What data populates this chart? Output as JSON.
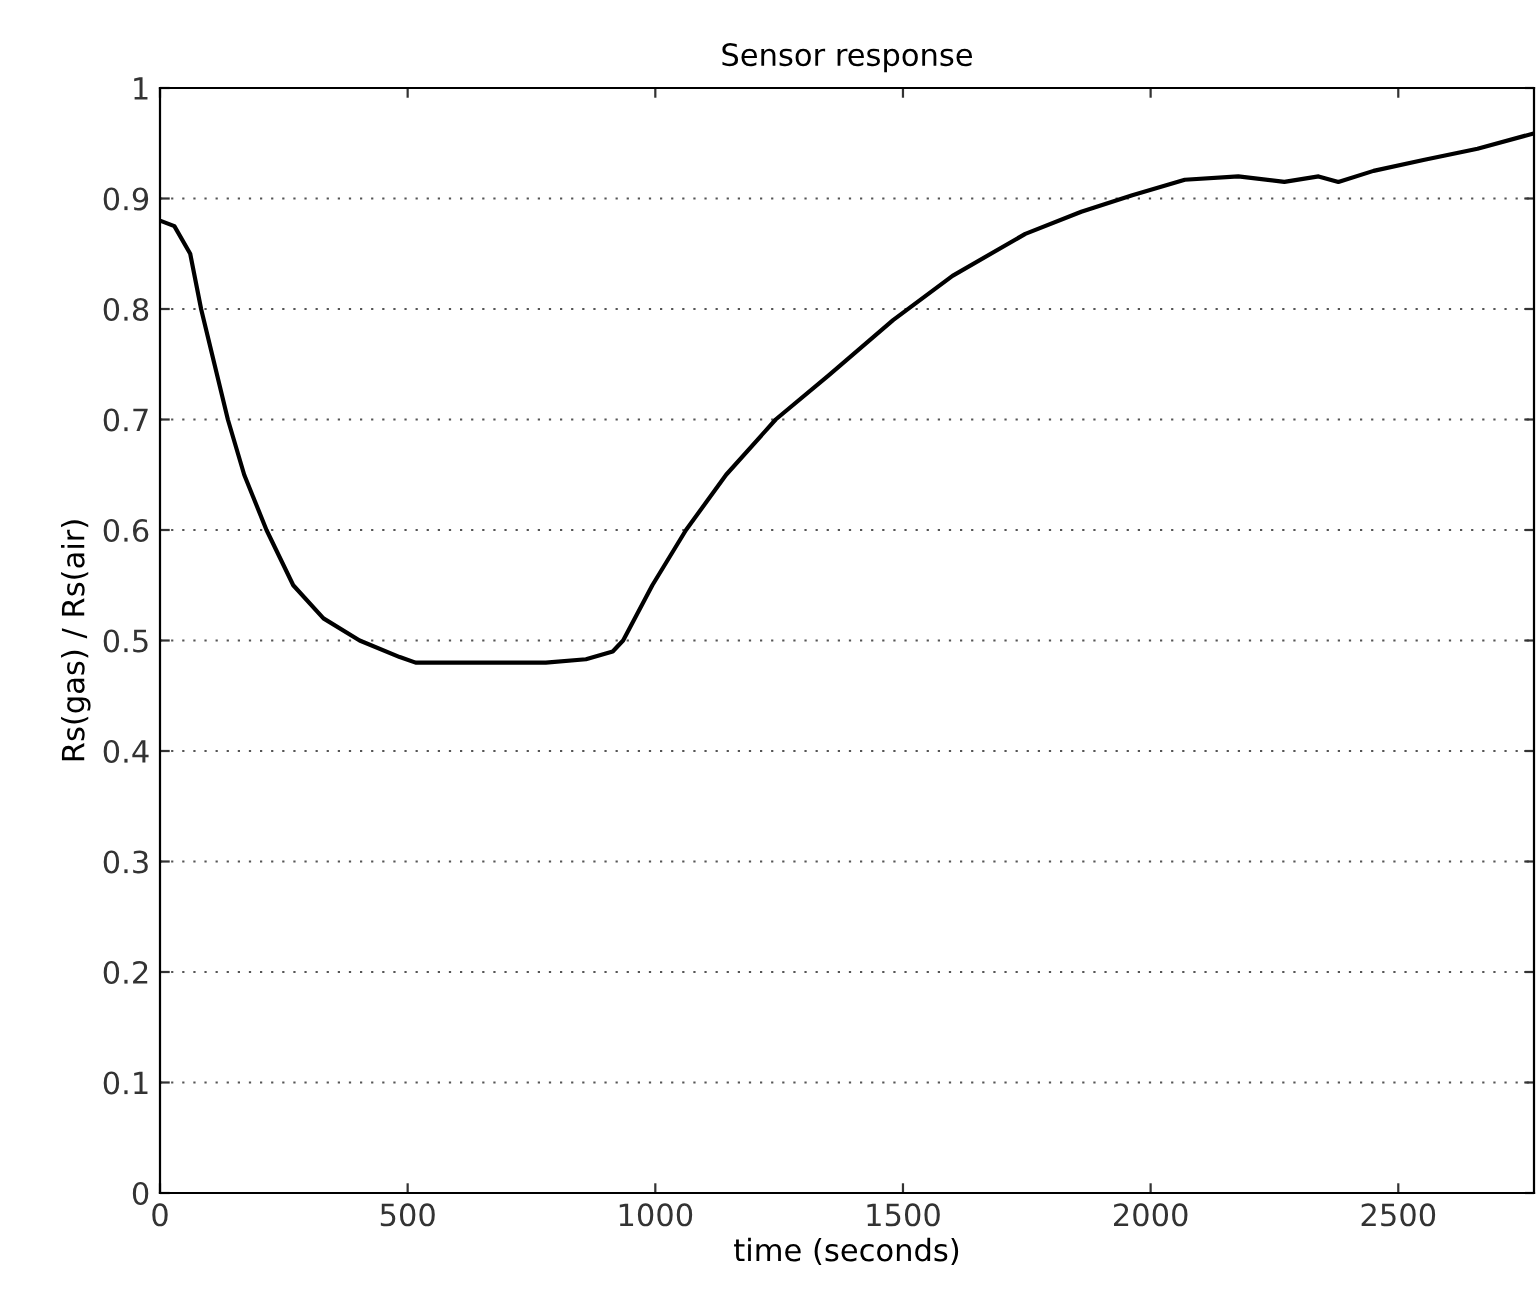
{
  "chart_data": {
    "type": "line",
    "title": "Sensor response",
    "xlabel": "time (seconds)",
    "ylabel": "Rs(gas) / Rs(air)",
    "x": [
      0,
      29,
      61,
      83,
      110,
      137,
      170,
      215,
      269,
      330,
      403,
      484,
      516,
      650,
      779,
      860,
      914,
      935,
      994,
      1062,
      1143,
      1243,
      1350,
      1480,
      1600,
      1747,
      1860,
      1963,
      2069,
      2177,
      2270,
      2339,
      2379,
      2450,
      2553,
      2660,
      2774
    ],
    "series": [
      {
        "color": "#000000",
        "values": [
          0.88,
          0.875,
          0.85,
          0.8,
          0.75,
          0.7,
          0.65,
          0.6,
          0.55,
          0.52,
          0.5,
          0.485,
          0.48,
          0.48,
          0.48,
          0.483,
          0.49,
          0.5,
          0.55,
          0.6,
          0.65,
          0.7,
          0.74,
          0.79,
          0.83,
          0.868,
          0.888,
          0.903,
          0.917,
          0.92,
          0.915,
          0.92,
          0.915,
          0.925,
          0.935,
          0.945,
          0.959
        ]
      }
    ],
    "xlim": [
      0,
      2774
    ],
    "xticks": [
      0,
      500,
      1000,
      1500,
      2000,
      2500
    ],
    "ylim": [
      0,
      1
    ],
    "yticks": [
      0,
      0.1,
      0.2,
      0.3,
      0.4,
      0.5,
      0.6,
      0.7,
      0.8,
      0.9,
      1
    ],
    "grid": "y",
    "line_style": "solid"
  }
}
